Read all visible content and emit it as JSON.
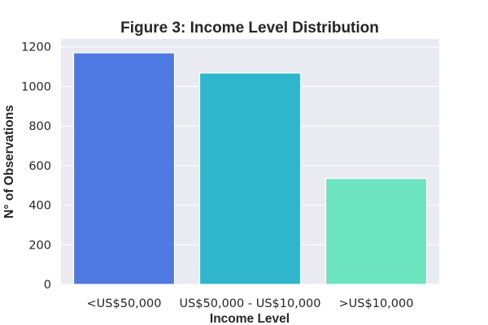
{
  "chart_data": {
    "type": "bar",
    "title": "Figure 3: Income Level Distribution",
    "xlabel": "Income Level",
    "ylabel": "N° of Observations",
    "categories": [
      "<US$50,000",
      "US$50,000 - US$10,000",
      ">US$10,000"
    ],
    "values": [
      1170,
      1068,
      535
    ],
    "colors": [
      "#4e79e3",
      "#2fb6cc",
      "#6de4c0"
    ],
    "ylim": [
      0,
      1240
    ],
    "yticks": [
      0,
      200,
      400,
      600,
      800,
      1000,
      1200
    ],
    "grid": true,
    "background": "#eaeaf2"
  }
}
